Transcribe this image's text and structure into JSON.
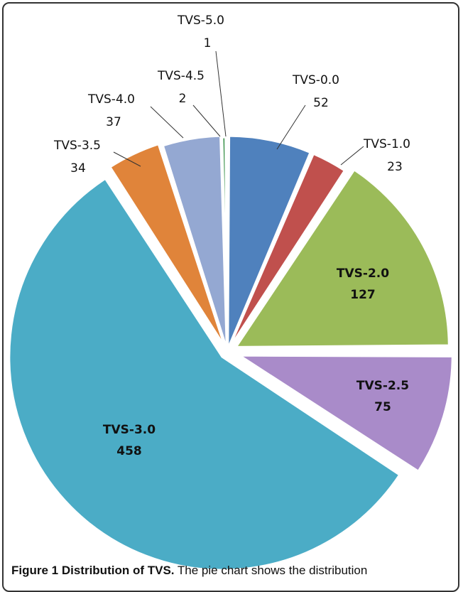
{
  "chart_data": {
    "type": "pie",
    "slices": [
      {
        "label": "TVS-0.0",
        "value": 52,
        "color": "#4F81BD",
        "label_pos": "outside"
      },
      {
        "label": "TVS-1.0",
        "value": 23,
        "color": "#C0504D",
        "label_pos": "outside"
      },
      {
        "label": "TVS-2.0",
        "value": 127,
        "color": "#9BBB59",
        "label_pos": "inside"
      },
      {
        "label": "TVS-2.5",
        "value": 75,
        "color": "#A98BC9",
        "label_pos": "inside"
      },
      {
        "label": "TVS-3.0",
        "value": 458,
        "color": "#4BACC6",
        "label_pos": "inside"
      },
      {
        "label": "TVS-3.5",
        "value": 34,
        "color": "#E0843A",
        "label_pos": "outside"
      },
      {
        "label": "TVS-4.0",
        "value": 37,
        "color": "#94A8D2",
        "label_pos": "outside"
      },
      {
        "label": "TVS-4.5",
        "value": 2,
        "color": "#2E8B3E",
        "label_pos": "outside"
      },
      {
        "label": "TVS-5.0",
        "value": 1,
        "color": "#E0843A",
        "label_pos": "outside"
      }
    ],
    "title": ""
  },
  "caption": {
    "label": "Figure 1 Distribution of TVS.",
    "text": " The pie chart shows the distribution"
  }
}
